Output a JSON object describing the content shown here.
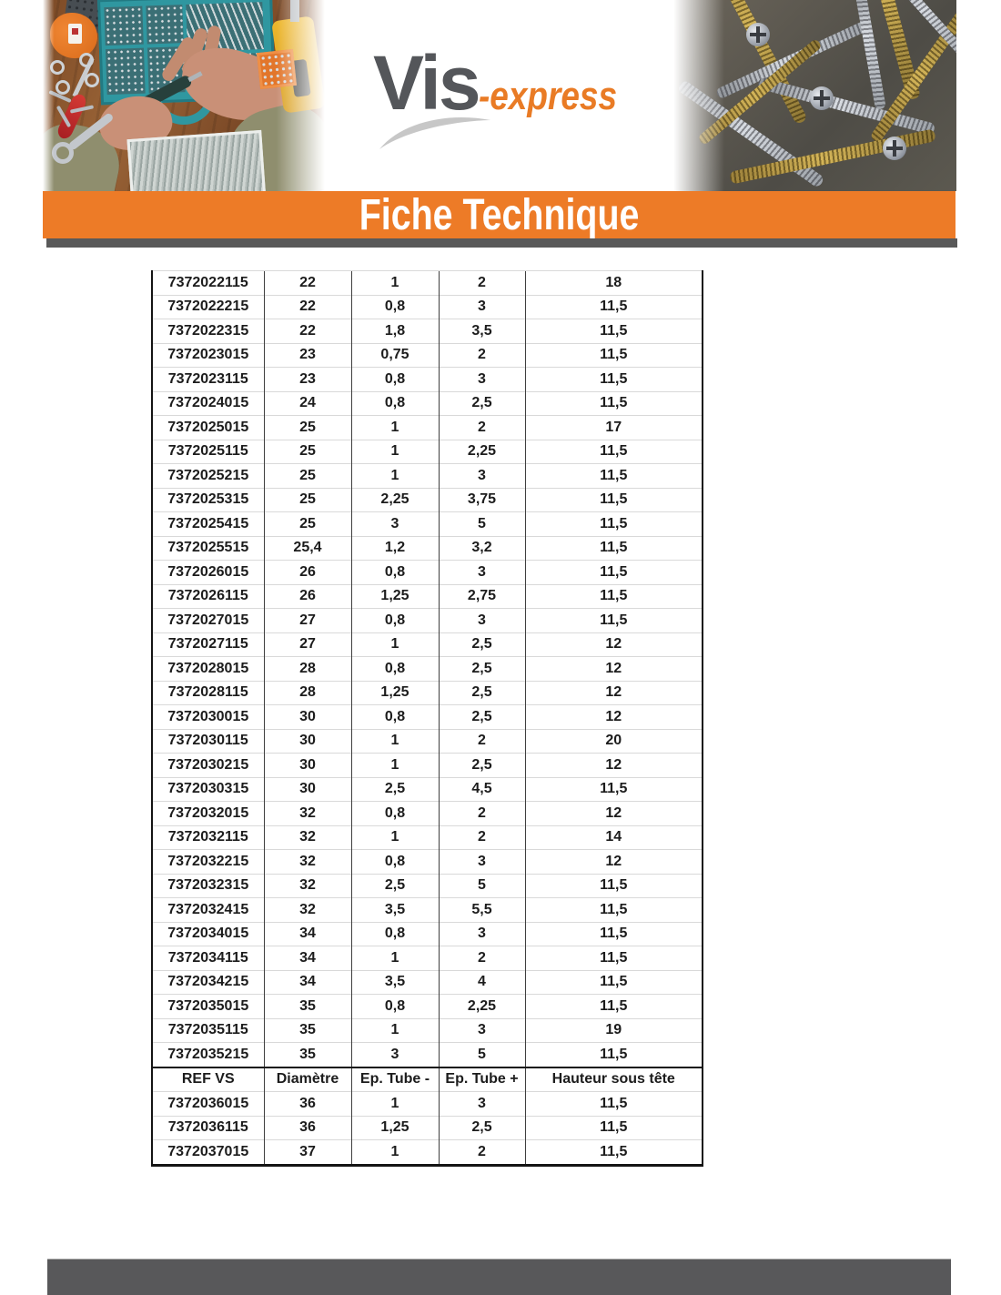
{
  "header": {
    "logo": {
      "primary": "Vis",
      "secondary": "-express"
    }
  },
  "banner": {
    "title": "Fiche Technique"
  },
  "table": {
    "column_headers": [
      "REF VS",
      "Diamètre",
      "Ep. Tube -",
      "Ep. Tube +",
      "Hauteur sous tête"
    ],
    "rows": [
      {
        "header": false,
        "cells": [
          "7372022115",
          "22",
          "1",
          "2",
          "18"
        ]
      },
      {
        "header": false,
        "cells": [
          "7372022215",
          "22",
          "0,8",
          "3",
          "11,5"
        ]
      },
      {
        "header": false,
        "cells": [
          "7372022315",
          "22",
          "1,8",
          "3,5",
          "11,5"
        ]
      },
      {
        "header": false,
        "cells": [
          "7372023015",
          "23",
          "0,75",
          "2",
          "11,5"
        ]
      },
      {
        "header": false,
        "cells": [
          "7372023115",
          "23",
          "0,8",
          "3",
          "11,5"
        ]
      },
      {
        "header": false,
        "cells": [
          "7372024015",
          "24",
          "0,8",
          "2,5",
          "11,5"
        ]
      },
      {
        "header": false,
        "cells": [
          "7372025015",
          "25",
          "1",
          "2",
          "17"
        ]
      },
      {
        "header": false,
        "cells": [
          "7372025115",
          "25",
          "1",
          "2,25",
          "11,5"
        ]
      },
      {
        "header": false,
        "cells": [
          "7372025215",
          "25",
          "1",
          "3",
          "11,5"
        ]
      },
      {
        "header": false,
        "cells": [
          "7372025315",
          "25",
          "2,25",
          "3,75",
          "11,5"
        ]
      },
      {
        "header": false,
        "cells": [
          "7372025415",
          "25",
          "3",
          "5",
          "11,5"
        ]
      },
      {
        "header": false,
        "cells": [
          "7372025515",
          "25,4",
          "1,2",
          "3,2",
          "11,5"
        ]
      },
      {
        "header": false,
        "cells": [
          "7372026015",
          "26",
          "0,8",
          "3",
          "11,5"
        ]
      },
      {
        "header": false,
        "cells": [
          "7372026115",
          "26",
          "1,25",
          "2,75",
          "11,5"
        ]
      },
      {
        "header": false,
        "cells": [
          "7372027015",
          "27",
          "0,8",
          "3",
          "11,5"
        ]
      },
      {
        "header": false,
        "cells": [
          "7372027115",
          "27",
          "1",
          "2,5",
          "12"
        ]
      },
      {
        "header": false,
        "cells": [
          "7372028015",
          "28",
          "0,8",
          "2,5",
          "12"
        ]
      },
      {
        "header": false,
        "cells": [
          "7372028115",
          "28",
          "1,25",
          "2,5",
          "12"
        ]
      },
      {
        "header": false,
        "cells": [
          "7372030015",
          "30",
          "0,8",
          "2,5",
          "12"
        ]
      },
      {
        "header": false,
        "cells": [
          "7372030115",
          "30",
          "1",
          "2",
          "20"
        ]
      },
      {
        "header": false,
        "cells": [
          "7372030215",
          "30",
          "1",
          "2,5",
          "12"
        ]
      },
      {
        "header": false,
        "cells": [
          "7372030315",
          "30",
          "2,5",
          "4,5",
          "11,5"
        ]
      },
      {
        "header": false,
        "cells": [
          "7372032015",
          "32",
          "0,8",
          "2",
          "12"
        ]
      },
      {
        "header": false,
        "cells": [
          "7372032115",
          "32",
          "1",
          "2",
          "14"
        ]
      },
      {
        "header": false,
        "cells": [
          "7372032215",
          "32",
          "0,8",
          "3",
          "12"
        ]
      },
      {
        "header": false,
        "cells": [
          "7372032315",
          "32",
          "2,5",
          "5",
          "11,5"
        ]
      },
      {
        "header": false,
        "cells": [
          "7372032415",
          "32",
          "3,5",
          "5,5",
          "11,5"
        ]
      },
      {
        "header": false,
        "cells": [
          "7372034015",
          "34",
          "0,8",
          "3",
          "11,5"
        ]
      },
      {
        "header": false,
        "cells": [
          "7372034115",
          "34",
          "1",
          "2",
          "11,5"
        ]
      },
      {
        "header": false,
        "cells": [
          "7372034215",
          "34",
          "3,5",
          "4",
          "11,5"
        ]
      },
      {
        "header": false,
        "cells": [
          "7372035015",
          "35",
          "0,8",
          "2,25",
          "11,5"
        ]
      },
      {
        "header": false,
        "cells": [
          "7372035115",
          "35",
          "1",
          "3",
          "19"
        ]
      },
      {
        "header": false,
        "cells": [
          "7372035215",
          "35",
          "3",
          "5",
          "11,5"
        ]
      },
      {
        "header": true,
        "cells": [
          "REF VS",
          "Diamètre",
          "Ep. Tube -",
          "Ep. Tube +",
          "Hauteur sous tête"
        ]
      },
      {
        "header": false,
        "cells": [
          "7372036015",
          "36",
          "1",
          "3",
          "11,5"
        ]
      },
      {
        "header": false,
        "cells": [
          "7372036115",
          "36",
          "1,25",
          "2,5",
          "11,5"
        ]
      },
      {
        "header": false,
        "cells": [
          "7372037015",
          "37",
          "1",
          "2",
          "11,5"
        ]
      }
    ]
  },
  "colors": {
    "accent_orange": "#ED7B27",
    "shadow_gray": "#595959",
    "logo_gray": "#54565A",
    "logo_orange": "#E97B25"
  }
}
